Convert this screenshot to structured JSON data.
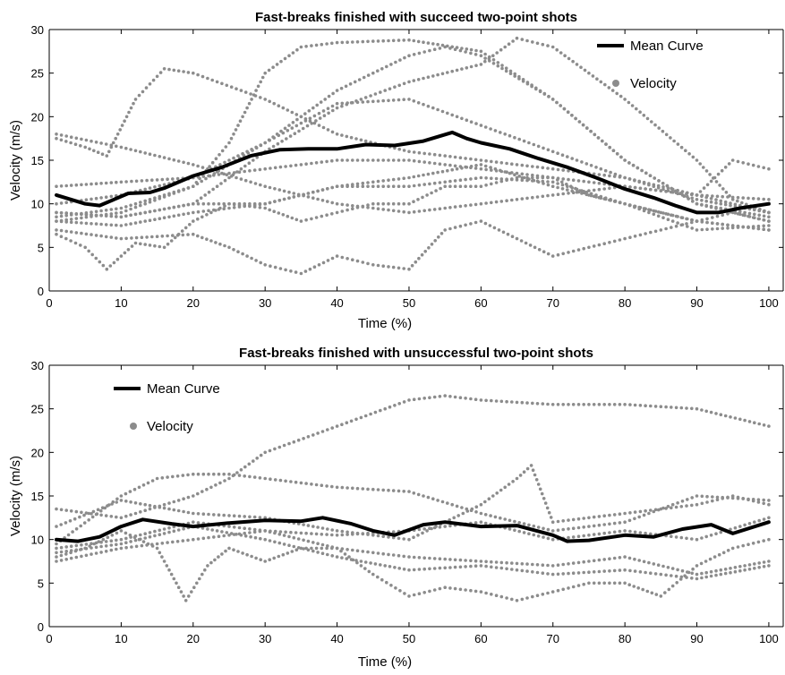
{
  "colors": {
    "mean": "#000000",
    "velocity": "#8c8c8c",
    "axis": "#000000",
    "background": "#ffffff"
  },
  "chart_data": [
    {
      "type": "line",
      "title": "Fast-breaks finished with succeed two-point shots",
      "xlabel": "Time (%)",
      "ylabel": "Velocity (m/s)",
      "xlim": [
        0,
        102
      ],
      "ylim": [
        0,
        30
      ],
      "xticks": [
        "0",
        "10",
        "20",
        "30",
        "40",
        "50",
        "60",
        "70",
        "80",
        "90",
        "100"
      ],
      "yticks": [
        "0",
        "5",
        "10",
        "15",
        "20",
        "25",
        "30"
      ],
      "legend": {
        "position": "top-right",
        "entries": [
          "Mean Curve",
          "Velocity"
        ]
      },
      "grid": false,
      "series": [
        {
          "name": "Mean Curve",
          "style": "line",
          "x": [
            1,
            3,
            5,
            7,
            9,
            11,
            14,
            16,
            20,
            24,
            28,
            32,
            36,
            40,
            44,
            48,
            52,
            56,
            58,
            60,
            64,
            68,
            72,
            76,
            80,
            84,
            87,
            90,
            93,
            96,
            100
          ],
          "y": [
            11,
            10.5,
            10,
            9.8,
            10.5,
            11.2,
            11.3,
            11.8,
            13.2,
            14.2,
            15.5,
            16.2,
            16.3,
            16.3,
            16.8,
            16.7,
            17.2,
            18.2,
            17.5,
            17,
            16.3,
            15.2,
            14.2,
            13,
            11.7,
            10.7,
            9.8,
            9,
            9,
            9.5,
            10
          ]
        },
        {
          "name": "Velocity",
          "style": "dotted",
          "x": [
            1,
            10,
            20,
            30,
            40,
            50,
            60,
            70,
            80,
            90,
            100
          ],
          "y": [
            18,
            16.5,
            14.5,
            12,
            10,
            9,
            10,
            11,
            12,
            11,
            10.5
          ]
        },
        {
          "style": "dotted",
          "x": [
            1,
            5,
            8,
            12,
            16,
            20,
            30,
            40,
            50,
            60,
            70,
            80,
            90,
            100
          ],
          "y": [
            17.5,
            16.5,
            15.5,
            22,
            25.5,
            25,
            22,
            18,
            16,
            15,
            14,
            13,
            11,
            9
          ]
        },
        {
          "style": "dotted",
          "x": [
            1,
            10,
            20,
            30,
            40,
            45,
            50,
            55,
            60,
            70,
            80,
            90,
            100
          ],
          "y": [
            8.5,
            9.5,
            12,
            17,
            23,
            25,
            27,
            28,
            27,
            22,
            15,
            10,
            8
          ]
        },
        {
          "style": "dotted",
          "x": [
            1,
            10,
            20,
            25,
            30,
            35,
            40,
            50,
            60,
            70,
            80,
            90,
            100
          ],
          "y": [
            8,
            9,
            12,
            17,
            25,
            28,
            28.5,
            28.8,
            27.5,
            22,
            15,
            10,
            8.5
          ]
        },
        {
          "style": "dotted",
          "x": [
            1,
            10,
            20,
            30,
            40,
            50,
            60,
            65,
            70,
            80,
            90,
            95,
            100
          ],
          "y": [
            9,
            8.5,
            10,
            16,
            21,
            24,
            26,
            29,
            28,
            22,
            15,
            10.5,
            9
          ]
        },
        {
          "style": "dotted",
          "x": [
            1,
            10,
            20,
            30,
            40,
            50,
            60,
            70,
            80,
            90,
            100
          ],
          "y": [
            10,
            11,
            13,
            17,
            21.5,
            22,
            19,
            16,
            13,
            10.5,
            9
          ]
        },
        {
          "style": "dotted",
          "x": [
            1,
            10,
            20,
            30,
            40,
            50,
            60,
            70,
            80,
            90,
            95,
            100
          ],
          "y": [
            12,
            12.5,
            13,
            14,
            15,
            15,
            14,
            13,
            12,
            11,
            15,
            14
          ]
        },
        {
          "style": "dotted",
          "x": [
            1,
            5,
            8,
            12,
            16,
            20,
            25,
            30,
            35,
            40,
            45,
            50,
            55,
            60,
            65,
            70,
            75,
            80,
            85,
            90,
            95,
            100
          ],
          "y": [
            6.5,
            5,
            2.5,
            5.5,
            5,
            8,
            10,
            9.5,
            8,
            9,
            10,
            10,
            12,
            12,
            13,
            13,
            11,
            10,
            9,
            8,
            9,
            8
          ]
        },
        {
          "style": "dotted",
          "x": [
            1,
            10,
            20,
            25,
            30,
            35,
            40,
            45,
            50,
            55,
            60,
            65,
            70,
            75,
            80,
            85,
            90,
            100
          ],
          "y": [
            7,
            6,
            6.5,
            5,
            3,
            2,
            4,
            3,
            2.5,
            7,
            8,
            6,
            4,
            5,
            6,
            7,
            8,
            7
          ]
        },
        {
          "style": "dotted",
          "x": [
            1,
            10,
            20,
            30,
            40,
            50,
            60,
            70,
            80,
            90,
            100
          ],
          "y": [
            8,
            7.5,
            9,
            10,
            12,
            12,
            13,
            12.5,
            10,
            8,
            7
          ]
        },
        {
          "style": "dotted",
          "x": [
            1,
            10,
            20,
            30,
            40,
            50,
            60,
            70,
            80,
            90,
            100
          ],
          "y": [
            9,
            8.5,
            10,
            10,
            12,
            13,
            14.5,
            12,
            10,
            7,
            7.5
          ]
        }
      ]
    },
    {
      "type": "line",
      "title": "Fast-breaks finished with unsuccessful two-point shots",
      "xlabel": "Time (%)",
      "ylabel": "Velocity (m/s)",
      "xlim": [
        0,
        102
      ],
      "ylim": [
        0,
        30
      ],
      "xticks": [
        "0",
        "10",
        "20",
        "30",
        "40",
        "50",
        "60",
        "70",
        "80",
        "90",
        "100"
      ],
      "yticks": [
        "0",
        "5",
        "10",
        "15",
        "20",
        "25",
        "30"
      ],
      "legend": {
        "position": "top-left",
        "entries": [
          "Mean Curve",
          "Velocity"
        ]
      },
      "grid": false,
      "series": [
        {
          "name": "Mean Curve",
          "style": "line",
          "x": [
            1,
            4,
            7,
            10,
            13,
            17,
            20,
            25,
            30,
            35,
            38,
            42,
            45,
            48,
            52,
            55,
            60,
            65,
            70,
            72,
            75,
            80,
            84,
            88,
            92,
            95,
            100
          ],
          "y": [
            10,
            9.8,
            10.3,
            11.5,
            12.3,
            11.8,
            11.5,
            11.9,
            12.2,
            12.1,
            12.5,
            11.8,
            11,
            10.5,
            11.7,
            12,
            11.5,
            11.6,
            10.5,
            9.8,
            9.9,
            10.5,
            10.3,
            11.2,
            11.7,
            10.7,
            12
          ]
        },
        {
          "name": "Velocity",
          "style": "dotted",
          "x": [
            1,
            10,
            20,
            25,
            30,
            40,
            50,
            55,
            60,
            70,
            80,
            90,
            100
          ],
          "y": [
            13.5,
            12.5,
            15,
            17,
            20,
            23,
            26,
            26.5,
            26,
            25.5,
            25.5,
            25,
            23
          ]
        },
        {
          "style": "dotted",
          "x": [
            1,
            10,
            15,
            20,
            25,
            30,
            40,
            50,
            60,
            70,
            80,
            90,
            100
          ],
          "y": [
            9.5,
            15,
            17,
            17.5,
            17.5,
            17,
            16,
            15.5,
            13,
            11,
            12,
            15,
            14.5
          ]
        },
        {
          "style": "dotted",
          "x": [
            1,
            10,
            20,
            30,
            40,
            50,
            60,
            65,
            67,
            70,
            80,
            90,
            95,
            100
          ],
          "y": [
            11.5,
            14.5,
            13,
            12.5,
            11,
            10,
            14,
            17,
            18.5,
            12,
            13,
            14,
            15,
            14
          ]
        },
        {
          "style": "dotted",
          "x": [
            1,
            5,
            10,
            15,
            19,
            22,
            25,
            30,
            35,
            40,
            45,
            50,
            55,
            60,
            65,
            70,
            75,
            80,
            85,
            90,
            95,
            100
          ],
          "y": [
            8,
            9,
            11,
            9,
            3,
            7,
            9,
            7.5,
            9,
            9,
            6,
            3.5,
            4.5,
            4,
            3,
            4,
            5,
            5,
            3.5,
            7,
            9,
            10
          ]
        },
        {
          "style": "dotted",
          "x": [
            1,
            10,
            20,
            30,
            40,
            50,
            60,
            70,
            80,
            90,
            100
          ],
          "y": [
            9,
            10,
            12,
            11,
            10.5,
            11,
            12,
            10,
            11,
            10,
            12.5
          ]
        },
        {
          "style": "dotted",
          "x": [
            1,
            10,
            20,
            30,
            40,
            50,
            60,
            70,
            80,
            90,
            100
          ],
          "y": [
            7.5,
            9,
            10,
            11,
            9,
            8,
            7.5,
            7,
            8,
            6,
            7.5
          ]
        },
        {
          "style": "dotted",
          "x": [
            1,
            10,
            20,
            30,
            40,
            50,
            60,
            70,
            80,
            90,
            100
          ],
          "y": [
            8.5,
            9.5,
            11.5,
            10,
            8,
            6.5,
            7,
            6,
            6.5,
            5.5,
            7
          ]
        }
      ]
    }
  ]
}
